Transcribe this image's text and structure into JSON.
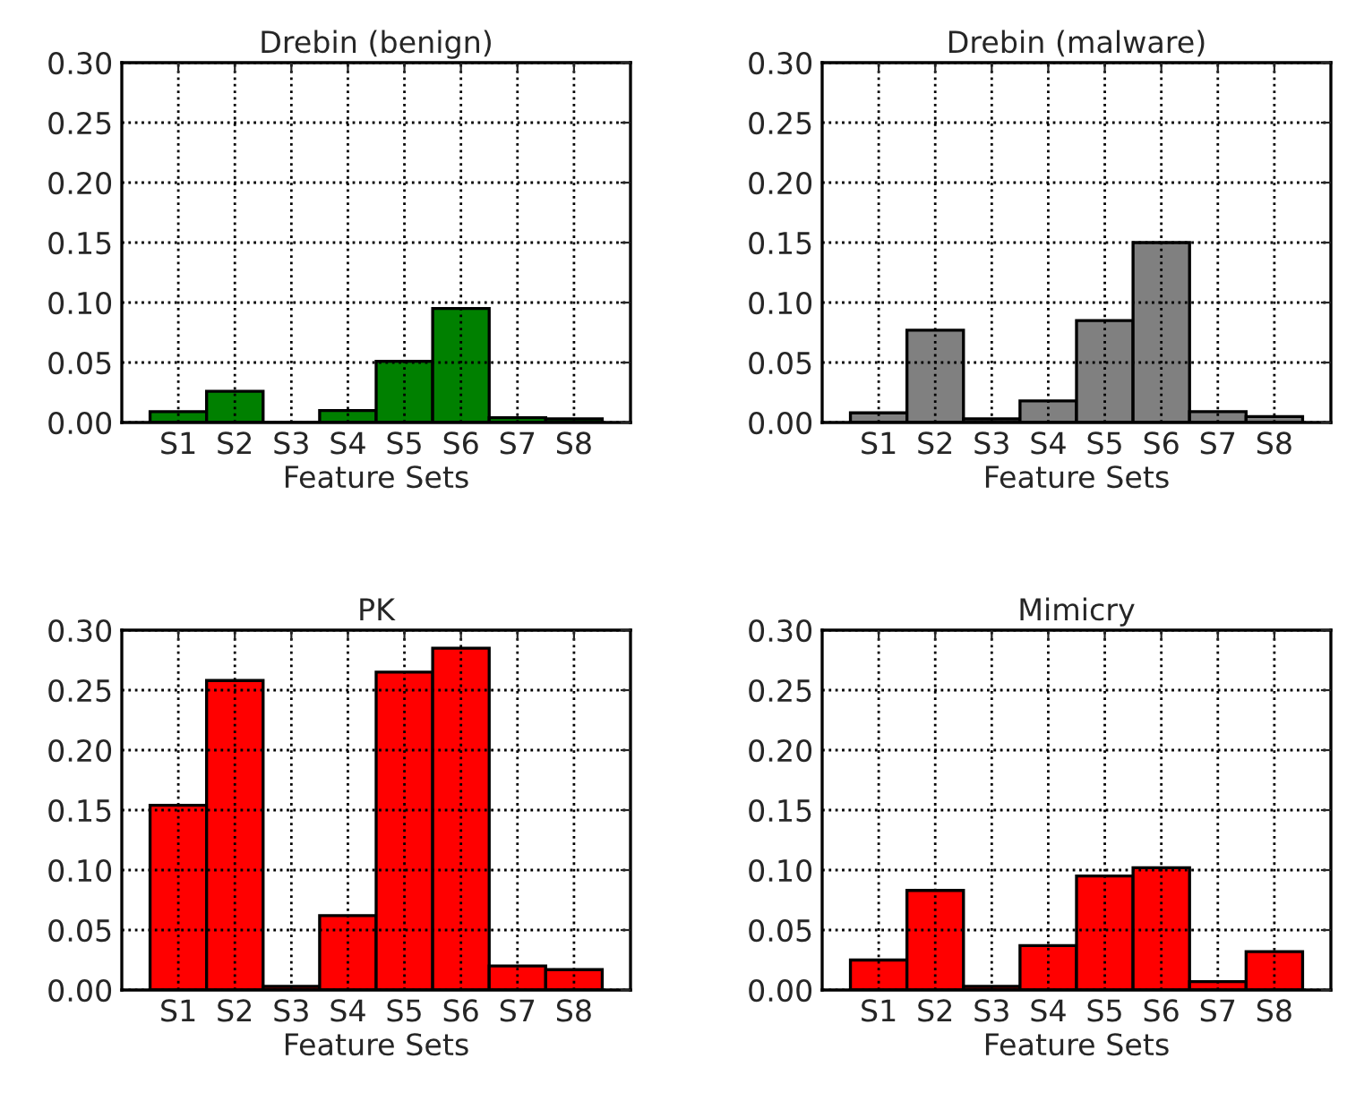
{
  "chart_data": [
    {
      "type": "bar",
      "title": "Drebin (benign)",
      "xlabel": "Feature Sets",
      "categories": [
        "S1",
        "S2",
        "S3",
        "S4",
        "S5",
        "S6",
        "S7",
        "S8"
      ],
      "values": [
        0.009,
        0.026,
        0,
        0.01,
        0.051,
        0.095,
        0.004,
        0.003
      ],
      "color": "#008000",
      "ylim": [
        0,
        0.3
      ],
      "yticks": [
        {
          "value": 0,
          "label": "0.00"
        },
        {
          "value": 0.05,
          "label": "0.05"
        },
        {
          "value": 0.1,
          "label": "0.10"
        },
        {
          "value": 0.15,
          "label": "0.15"
        },
        {
          "value": 0.2,
          "label": "0.20"
        },
        {
          "value": 0.25,
          "label": "0.25"
        },
        {
          "value": 0.3,
          "label": "0.30"
        }
      ],
      "grid": true
    },
    {
      "type": "bar",
      "title": "Drebin (malware)",
      "xlabel": "Feature Sets",
      "categories": [
        "S1",
        "S2",
        "S3",
        "S4",
        "S5",
        "S6",
        "S7",
        "S8"
      ],
      "values": [
        0.008,
        0.077,
        0.003,
        0.018,
        0.085,
        0.15,
        0.009,
        0.005
      ],
      "color": "#808080",
      "ylim": [
        0,
        0.3
      ],
      "yticks": [
        {
          "value": 0,
          "label": "0.00"
        },
        {
          "value": 0.05,
          "label": "0.05"
        },
        {
          "value": 0.1,
          "label": "0.10"
        },
        {
          "value": 0.15,
          "label": "0.15"
        },
        {
          "value": 0.2,
          "label": "0.20"
        },
        {
          "value": 0.25,
          "label": "0.25"
        },
        {
          "value": 0.3,
          "label": "0.30"
        }
      ],
      "grid": true
    },
    {
      "type": "bar",
      "title": "PK",
      "xlabel": "Feature Sets",
      "categories": [
        "S1",
        "S2",
        "S3",
        "S4",
        "S5",
        "S6",
        "S7",
        "S8"
      ],
      "values": [
        0.154,
        0.258,
        0.003,
        0.062,
        0.265,
        0.285,
        0.02,
        0.017
      ],
      "color": "#ff0000",
      "ylim": [
        0,
        0.3
      ],
      "yticks": [
        {
          "value": 0,
          "label": "0.00"
        },
        {
          "value": 0.05,
          "label": "0.05"
        },
        {
          "value": 0.1,
          "label": "0.10"
        },
        {
          "value": 0.15,
          "label": "0.15"
        },
        {
          "value": 0.2,
          "label": "0.20"
        },
        {
          "value": 0.25,
          "label": "0.25"
        },
        {
          "value": 0.3,
          "label": "0.30"
        }
      ],
      "grid": true
    },
    {
      "type": "bar",
      "title": "Mimicry",
      "xlabel": "Feature Sets",
      "categories": [
        "S1",
        "S2",
        "S3",
        "S4",
        "S5",
        "S6",
        "S7",
        "S8"
      ],
      "values": [
        0.025,
        0.083,
        0.003,
        0.037,
        0.095,
        0.102,
        0.007,
        0.032
      ],
      "color": "#ff0000",
      "ylim": [
        0,
        0.3
      ],
      "yticks": [
        {
          "value": 0,
          "label": "0.00"
        },
        {
          "value": 0.05,
          "label": "0.05"
        },
        {
          "value": 0.1,
          "label": "0.10"
        },
        {
          "value": 0.15,
          "label": "0.15"
        },
        {
          "value": 0.2,
          "label": "0.20"
        },
        {
          "value": 0.25,
          "label": "0.25"
        },
        {
          "value": 0.3,
          "label": "0.30"
        }
      ],
      "grid": true
    }
  ]
}
